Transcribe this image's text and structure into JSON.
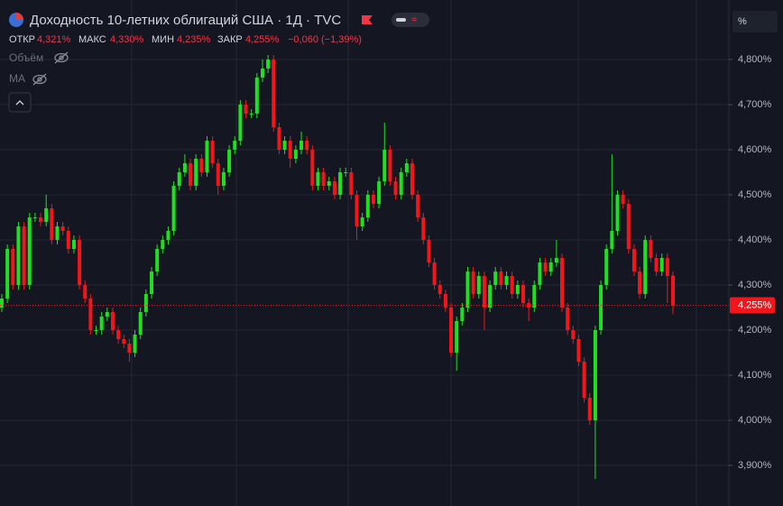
{
  "header": {
    "title": "Доходность 10-летних облигаций США · 1Д · TVC",
    "open_label": "ОТКР",
    "open": "4,321%",
    "high_label": "МАКС",
    "high": "4,330%",
    "low_label": "МИН",
    "low": "4,235%",
    "close_label": "ЗАКР",
    "close": "4,255%",
    "change": "−0,060 (−1,39%)",
    "volume": "Объём",
    "ma": "MA",
    "unit": "%"
  },
  "chart_data": {
    "type": "candlestick",
    "up_color": "#1fe01f",
    "down_color": "#f2161b",
    "grid": true,
    "ylim": [
      3.81,
      4.932
    ],
    "yticks": [
      {
        "value": 3.9,
        "label": "3,900%"
      },
      {
        "value": 4.0,
        "label": "4,000%"
      },
      {
        "value": 4.1,
        "label": "4,100%"
      },
      {
        "value": 4.2,
        "label": "4,200%"
      },
      {
        "value": 4.3,
        "label": "4,300%"
      },
      {
        "value": 4.4,
        "label": "4,400%"
      },
      {
        "value": 4.5,
        "label": "4,500%"
      },
      {
        "value": 4.6,
        "label": "4,600%"
      },
      {
        "value": 4.7,
        "label": "4,700%"
      },
      {
        "value": 4.8,
        "label": "4,800%"
      }
    ],
    "open": [
      4.25,
      4.27,
      4.38,
      4.3,
      4.43,
      4.3,
      4.45,
      4.45,
      4.44,
      4.47,
      4.4,
      4.43,
      4.42,
      4.38,
      4.4,
      4.3,
      4.27,
      4.2,
      4.2,
      4.23,
      4.24,
      4.2,
      4.18,
      4.17,
      4.15,
      4.19,
      4.24,
      4.28,
      4.33,
      4.38,
      4.4,
      4.42,
      4.52,
      4.55,
      4.57,
      4.52,
      4.58,
      4.55,
      4.62,
      4.57,
      4.52,
      4.55,
      4.6,
      4.62,
      4.7,
      4.68,
      4.68,
      4.76,
      4.78,
      4.8,
      4.65,
      4.6,
      4.62,
      4.58,
      4.6,
      4.62,
      4.6,
      4.52,
      4.55,
      4.52,
      4.53,
      4.5,
      4.55,
      4.55,
      4.5,
      4.43,
      4.45,
      4.5,
      4.48,
      4.53,
      4.6,
      4.53,
      4.5,
      4.55,
      4.57,
      4.5,
      4.45,
      4.4,
      4.35,
      4.3,
      4.28,
      4.25,
      4.15,
      4.22,
      4.25,
      4.33,
      4.28,
      4.32,
      4.25,
      4.3,
      4.33,
      4.3,
      4.32,
      4.28,
      4.3,
      4.26,
      4.25,
      4.3,
      4.35,
      4.33,
      4.35,
      4.36,
      4.25,
      4.2,
      4.18,
      4.13,
      4.05,
      4.0,
      4.2,
      4.3,
      4.38,
      4.42,
      4.5,
      4.48,
      4.38,
      4.33,
      4.28,
      4.4,
      4.36,
      4.33,
      4.36,
      4.321
    ],
    "high": [
      4.28,
      4.39,
      4.39,
      4.44,
      4.44,
      4.46,
      4.46,
      4.46,
      4.5,
      4.48,
      4.44,
      4.44,
      4.43,
      4.41,
      4.41,
      4.31,
      4.28,
      4.21,
      4.24,
      4.25,
      4.25,
      4.21,
      4.19,
      4.18,
      4.2,
      4.25,
      4.29,
      4.34,
      4.39,
      4.41,
      4.43,
      4.53,
      4.56,
      4.59,
      4.58,
      4.59,
      4.59,
      4.63,
      4.63,
      4.58,
      4.56,
      4.61,
      4.63,
      4.71,
      4.71,
      4.69,
      4.77,
      4.8,
      4.81,
      4.81,
      4.66,
      4.63,
      4.63,
      4.61,
      4.64,
      4.63,
      4.61,
      4.56,
      4.56,
      4.54,
      4.54,
      4.56,
      4.56,
      4.56,
      4.51,
      4.46,
      4.51,
      4.51,
      4.54,
      4.66,
      4.61,
      4.54,
      4.56,
      4.58,
      4.58,
      4.51,
      4.46,
      4.41,
      4.36,
      4.31,
      4.29,
      4.26,
      4.23,
      4.26,
      4.34,
      4.34,
      4.33,
      4.33,
      4.31,
      4.34,
      4.34,
      4.33,
      4.33,
      4.31,
      4.31,
      4.27,
      4.31,
      4.36,
      4.36,
      4.36,
      4.4,
      4.37,
      4.26,
      4.21,
      4.19,
      4.14,
      4.06,
      4.21,
      4.31,
      4.39,
      4.59,
      4.51,
      4.51,
      4.49,
      4.39,
      4.34,
      4.41,
      4.41,
      4.37,
      4.37,
      4.37,
      4.33
    ],
    "low": [
      4.24,
      4.26,
      4.29,
      4.29,
      4.29,
      4.29,
      4.44,
      4.43,
      4.43,
      4.39,
      4.39,
      4.41,
      4.37,
      4.37,
      4.29,
      4.26,
      4.19,
      4.19,
      4.19,
      4.22,
      4.19,
      4.17,
      4.16,
      4.13,
      4.14,
      4.18,
      4.23,
      4.27,
      4.32,
      4.37,
      4.39,
      4.41,
      4.51,
      4.54,
      4.51,
      4.51,
      4.54,
      4.54,
      4.56,
      4.5,
      4.51,
      4.54,
      4.59,
      4.61,
      4.67,
      4.67,
      4.67,
      4.75,
      4.77,
      4.64,
      4.59,
      4.59,
      4.56,
      4.57,
      4.59,
      4.59,
      4.51,
      4.51,
      4.51,
      4.51,
      4.49,
      4.49,
      4.54,
      4.49,
      4.4,
      4.42,
      4.44,
      4.47,
      4.47,
      4.52,
      4.52,
      4.49,
      4.49,
      4.54,
      4.49,
      4.44,
      4.39,
      4.34,
      4.29,
      4.27,
      4.24,
      4.14,
      4.11,
      4.21,
      4.24,
      4.27,
      4.27,
      4.2,
      4.24,
      4.29,
      4.29,
      4.29,
      4.27,
      4.27,
      4.25,
      4.22,
      4.24,
      4.29,
      4.32,
      4.32,
      4.34,
      4.24,
      4.19,
      4.17,
      4.12,
      4.04,
      3.99,
      3.87,
      4.19,
      4.29,
      4.37,
      4.41,
      4.47,
      4.37,
      4.32,
      4.27,
      4.27,
      4.35,
      4.32,
      4.32,
      4.26,
      4.235
    ],
    "close": [
      4.27,
      4.38,
      4.3,
      4.43,
      4.3,
      4.45,
      4.45,
      4.44,
      4.47,
      4.4,
      4.43,
      4.42,
      4.38,
      4.4,
      4.3,
      4.27,
      4.2,
      4.2,
      4.23,
      4.24,
      4.2,
      4.18,
      4.17,
      4.15,
      4.19,
      4.24,
      4.28,
      4.33,
      4.38,
      4.4,
      4.42,
      4.52,
      4.55,
      4.57,
      4.52,
      4.58,
      4.55,
      4.62,
      4.57,
      4.52,
      4.55,
      4.6,
      4.62,
      4.7,
      4.68,
      4.68,
      4.76,
      4.78,
      4.8,
      4.65,
      4.6,
      4.62,
      4.58,
      4.6,
      4.62,
      4.6,
      4.52,
      4.55,
      4.52,
      4.53,
      4.5,
      4.55,
      4.55,
      4.5,
      4.43,
      4.45,
      4.5,
      4.48,
      4.53,
      4.6,
      4.53,
      4.5,
      4.55,
      4.57,
      4.5,
      4.45,
      4.4,
      4.35,
      4.3,
      4.28,
      4.25,
      4.15,
      4.22,
      4.25,
      4.33,
      4.28,
      4.32,
      4.25,
      4.3,
      4.33,
      4.3,
      4.32,
      4.28,
      4.3,
      4.26,
      4.25,
      4.3,
      4.35,
      4.33,
      4.35,
      4.36,
      4.25,
      4.2,
      4.18,
      4.13,
      4.05,
      4.0,
      4.2,
      4.3,
      4.38,
      4.42,
      4.5,
      4.48,
      4.38,
      4.33,
      4.28,
      4.4,
      4.36,
      4.33,
      4.36,
      4.32,
      4.255
    ]
  }
}
